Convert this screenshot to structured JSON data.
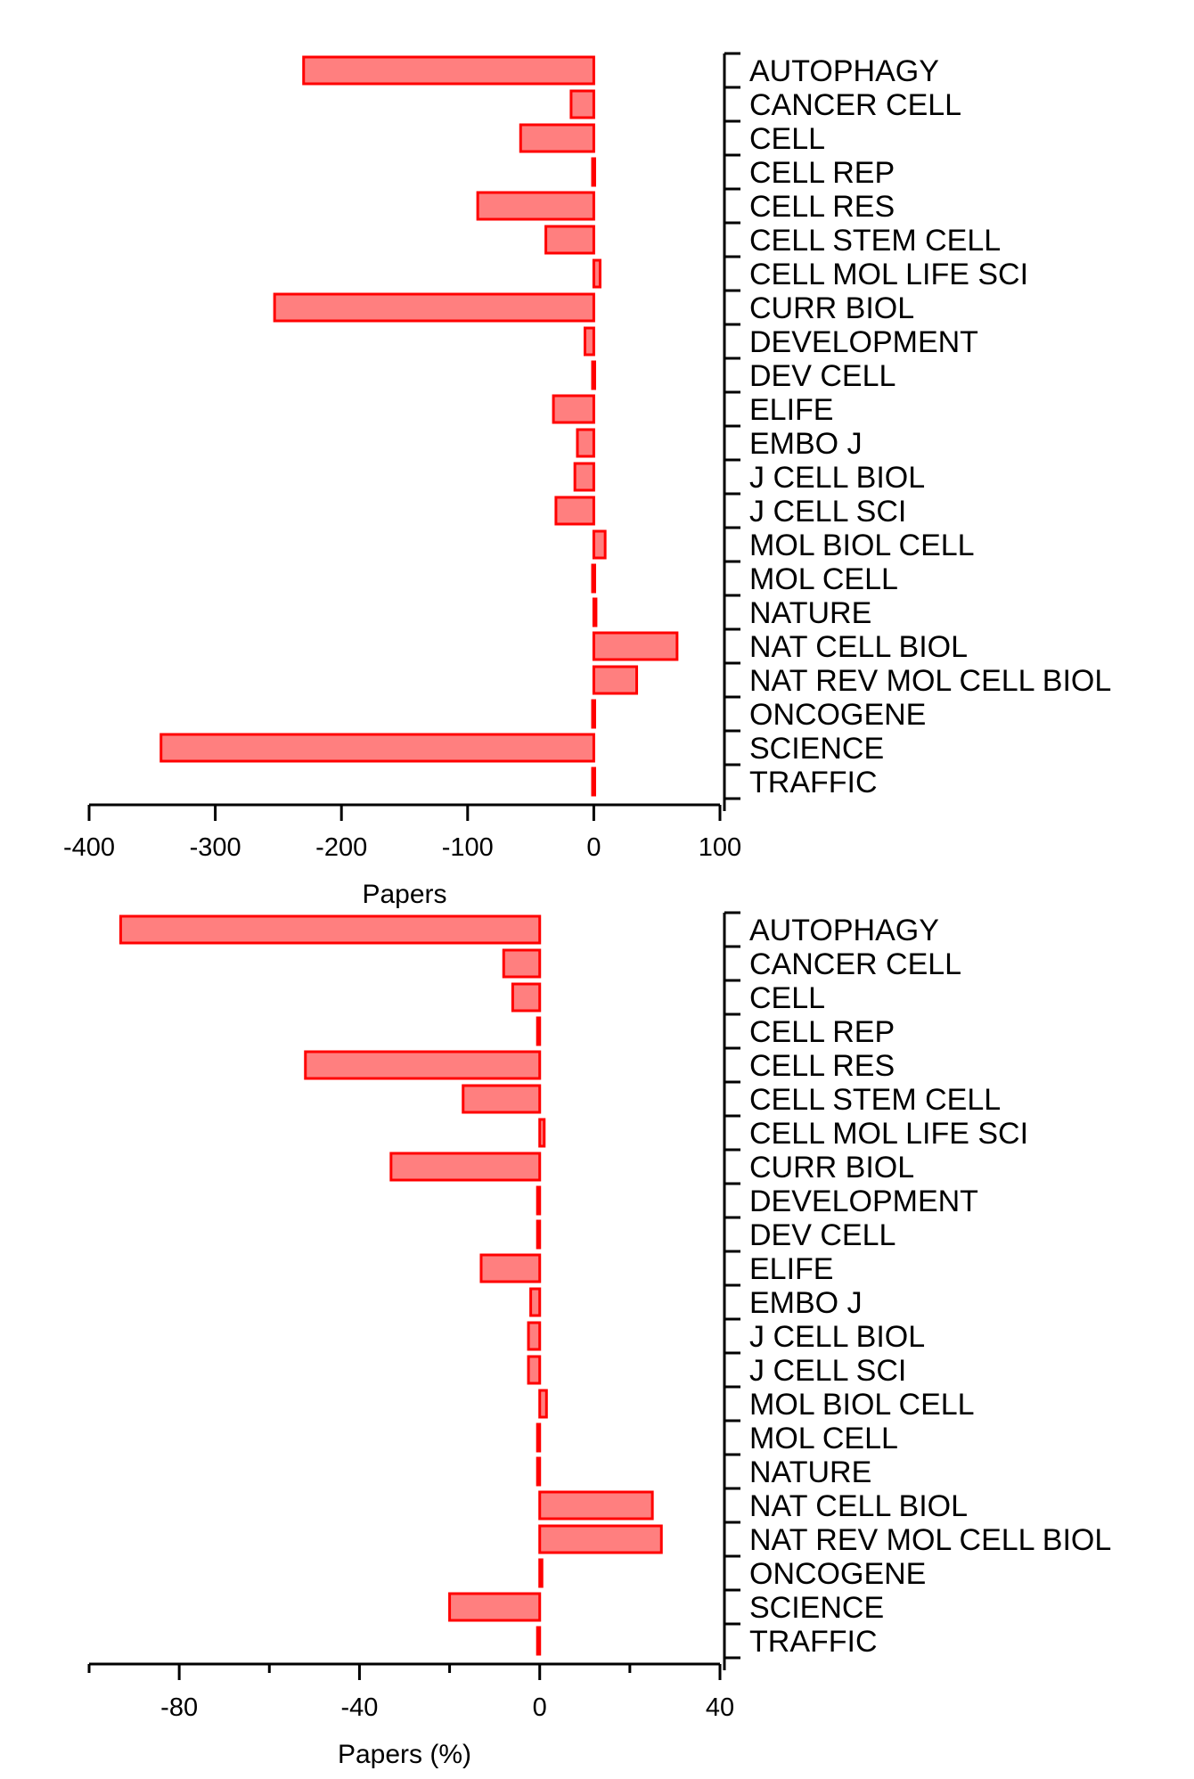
{
  "chart_data": [
    {
      "type": "bar",
      "orientation": "horizontal",
      "categories": [
        "AUTOPHAGY",
        "CANCER CELL",
        "CELL",
        "CELL REP",
        "CELL RES",
        "CELL STEM CELL",
        "CELL MOL LIFE SCI",
        "CURR BIOL",
        "DEVELOPMENT",
        "DEV CELL",
        "ELIFE",
        "EMBO J",
        "J CELL BIOL",
        "J CELL SCI",
        "MOL BIOL CELL",
        "MOL CELL",
        "NATURE",
        "NAT CELL BIOL",
        "NAT REV MOL CELL BIOL",
        "ONCOGENE",
        "SCIENCE",
        "TRAFFIC"
      ],
      "values": [
        -230,
        -18,
        -58,
        -1,
        -92,
        -38,
        5,
        -253,
        -7,
        -1,
        -32,
        -13,
        -15,
        -30,
        9,
        -1,
        1,
        66,
        34,
        -1,
        -343,
        -1
      ],
      "xlabel": "Papers",
      "xlim": [
        -400,
        100
      ],
      "xticks": [
        -400,
        -300,
        -200,
        -100,
        0,
        100
      ],
      "xtick_labels": [
        "-400",
        "-300",
        "-200",
        "-100",
        "0",
        "100"
      ],
      "xminor": [],
      "bar_color": "#ff7f7f",
      "edge_color": "#ff0000"
    },
    {
      "type": "bar",
      "orientation": "horizontal",
      "categories": [
        "AUTOPHAGY",
        "CANCER CELL",
        "CELL",
        "CELL REP",
        "CELL RES",
        "CELL STEM CELL",
        "CELL MOL LIFE SCI",
        "CURR BIOL",
        "DEVELOPMENT",
        "DEV CELL",
        "ELIFE",
        "EMBO J",
        "J CELL BIOL",
        "J CELL SCI",
        "MOL BIOL CELL",
        "MOL CELL",
        "NATURE",
        "NAT CELL BIOL",
        "NAT REV MOL CELL BIOL",
        "ONCOGENE",
        "SCIENCE",
        "TRAFFIC"
      ],
      "values": [
        -93,
        -8,
        -6,
        -0.5,
        -52,
        -17,
        1,
        -33,
        -0.5,
        -0.5,
        -13,
        -2,
        -2.5,
        -2.5,
        1.5,
        -0.5,
        -0.5,
        25,
        27,
        0.5,
        -20,
        -0.5
      ],
      "xlabel": "Papers (%)",
      "xlim": [
        -100,
        40
      ],
      "xticks": [
        -80,
        -40,
        0,
        40
      ],
      "xtick_labels": [
        "-80",
        "-40",
        "0",
        "40"
      ],
      "xminor": [
        -100,
        -60,
        -20,
        20
      ],
      "bar_color": "#ff7f7f",
      "edge_color": "#ff0000"
    }
  ]
}
